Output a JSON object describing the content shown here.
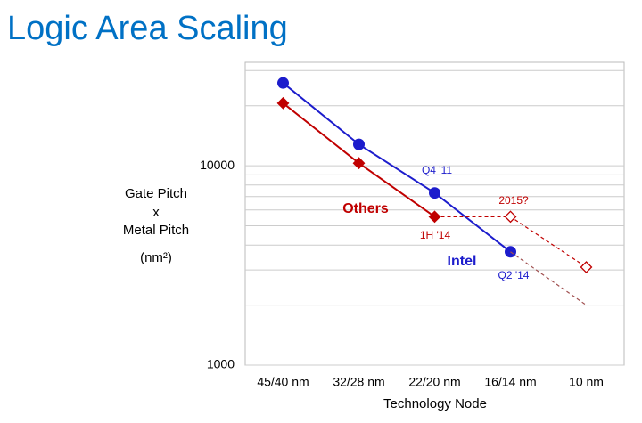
{
  "chart_data": {
    "type": "line",
    "title": "Logic Area Scaling",
    "x_label": "Technology Node",
    "y_label": [
      "Gate Pitch",
      "x",
      "Metal Pitch",
      "(nm²)"
    ],
    "categories": [
      "45/40 nm",
      "32/28 nm",
      "22/20 nm",
      "16/14 nm",
      "10 nm"
    ],
    "log_y": true,
    "ylim": [
      1000,
      33000
    ],
    "yticks": [
      1000,
      10000
    ],
    "minor_yticks": [
      2000,
      3000,
      4000,
      5000,
      6000,
      7000,
      8000,
      9000,
      20000,
      30000
    ],
    "grid": true,
    "series": [
      {
        "name": "Intel",
        "color": "#1c1ccc",
        "marker": "circle",
        "values": [
          26000,
          12800,
          7300,
          3700,
          null
        ]
      },
      {
        "name": "Others",
        "color": "#c00000",
        "marker": "diamond",
        "values": [
          20600,
          10300,
          5550,
          null,
          null
        ]
      },
      {
        "color": "#a05050",
        "dashed": true,
        "values": [
          null,
          null,
          null,
          3700,
          2000
        ]
      },
      {
        "color": "#c00000",
        "dashed": true,
        "marker": "open-diamond",
        "values": [
          null,
          null,
          5550,
          5550,
          3100
        ]
      }
    ],
    "annotations": [
      {
        "text": "Q4 '11",
        "color": "#1c1ccc"
      },
      {
        "text": "1H '14",
        "color": "#c00000"
      },
      {
        "text": "2015?",
        "color": "#c00000"
      },
      {
        "text": "Q2 '14",
        "color": "#1c1ccc"
      }
    ]
  }
}
